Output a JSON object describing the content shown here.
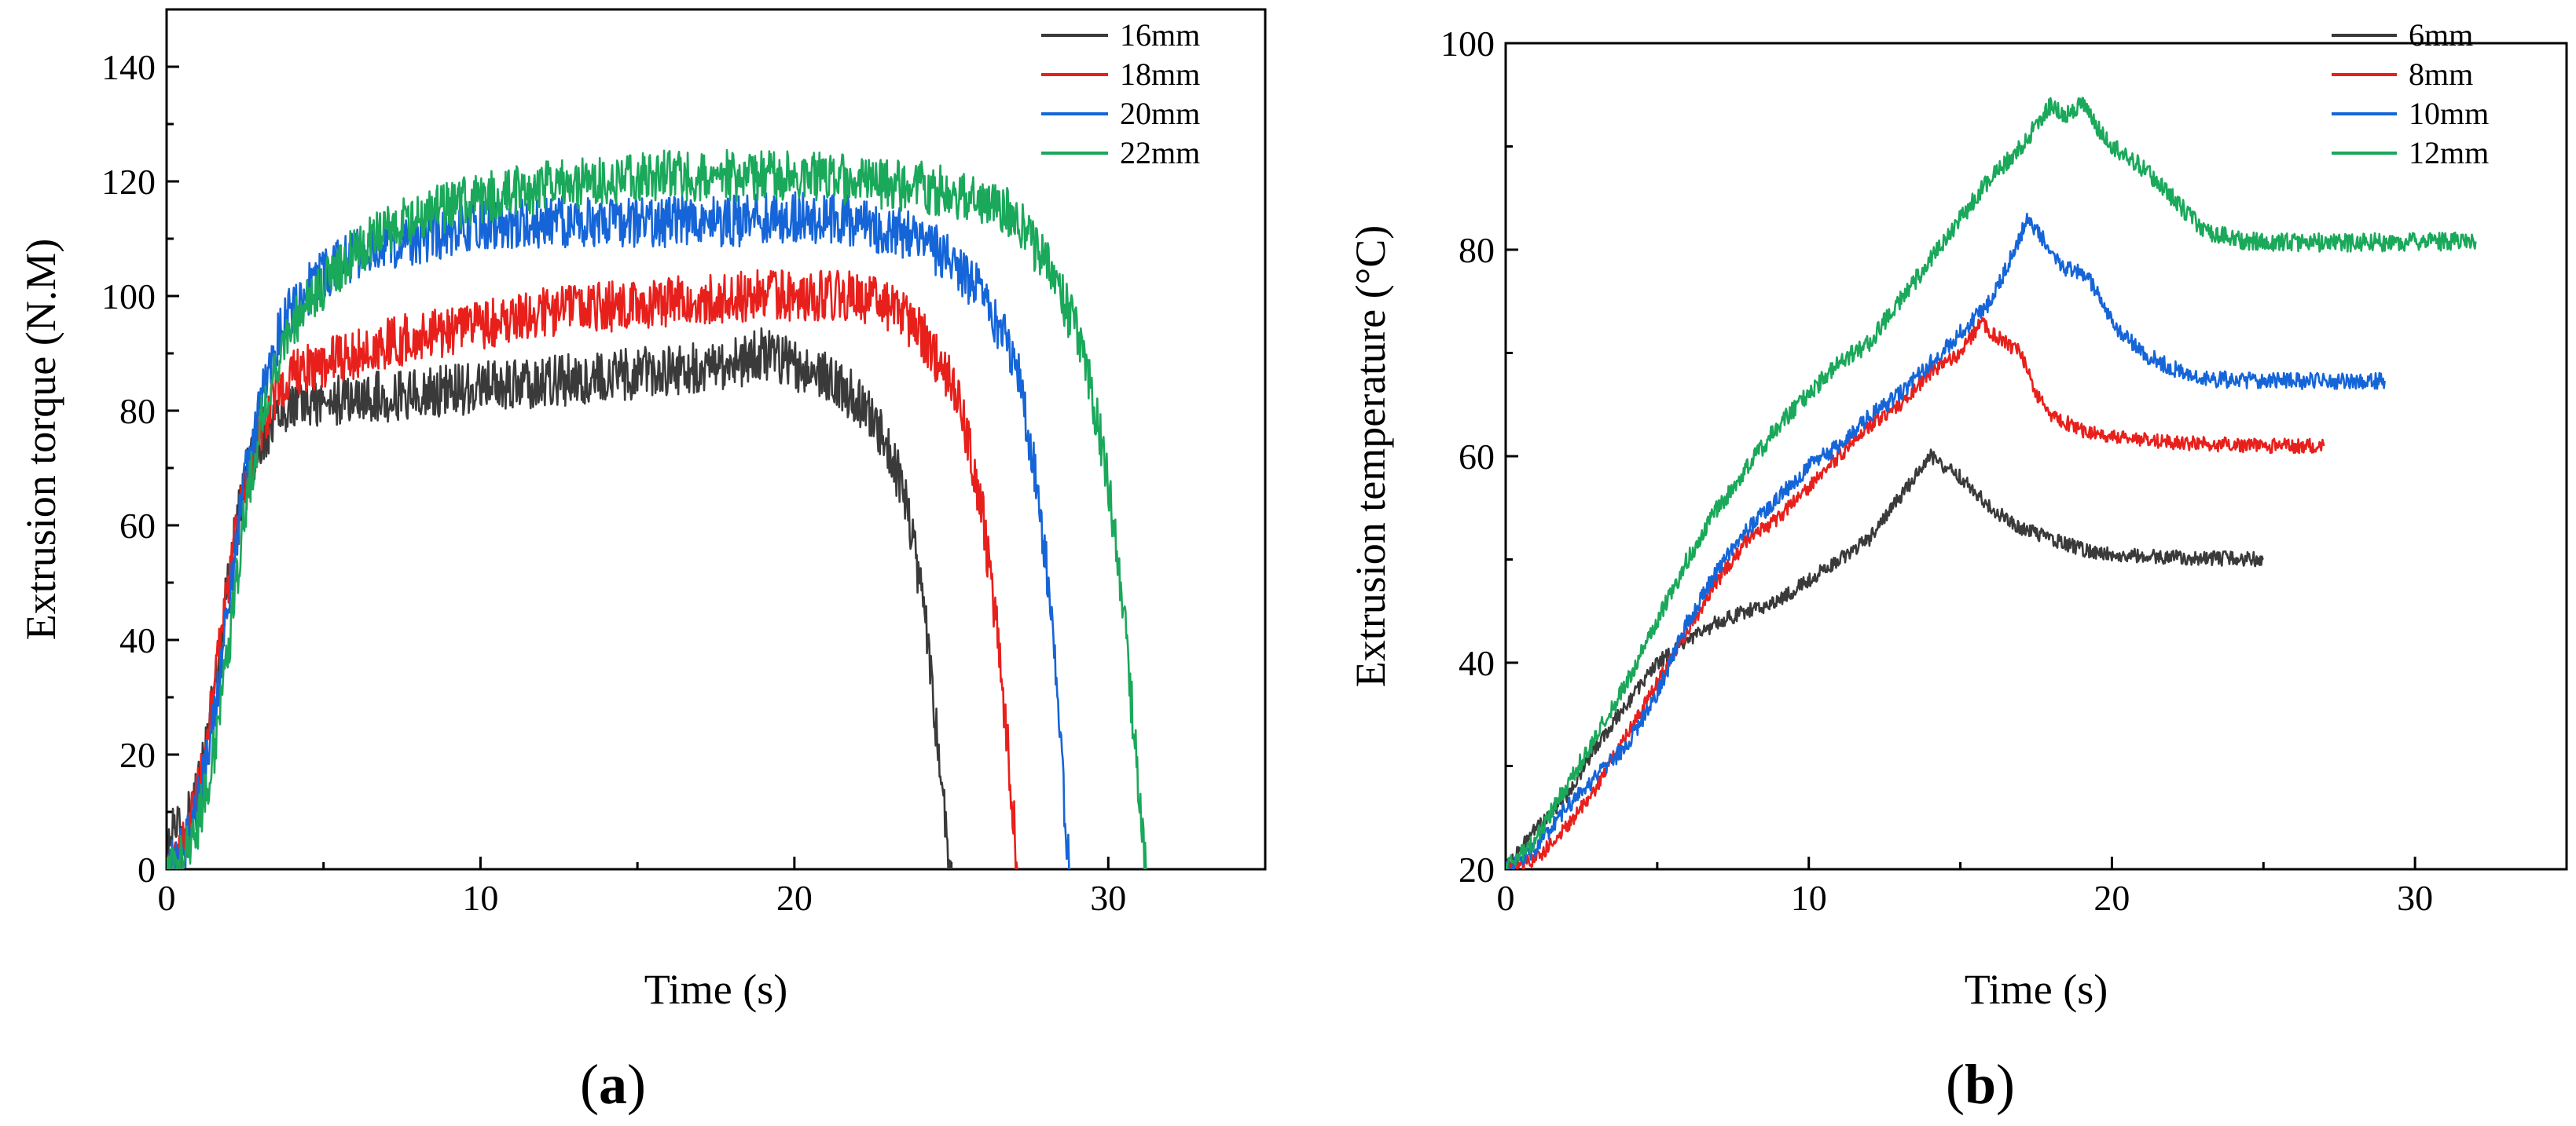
{
  "colors": {
    "black": "#3a3a3a",
    "red": "#e8201c",
    "blue": "#1565d8",
    "green": "#1aa85a"
  },
  "chart_data": [
    {
      "type": "line",
      "panel_label": "a",
      "xlabel": "Time (s)",
      "ylabel": "Extrusion torque (N.M)",
      "xlim": [
        0,
        35
      ],
      "ylim": [
        0,
        150
      ],
      "xticks": [
        0,
        10,
        20,
        30
      ],
      "yticks": [
        0,
        20,
        40,
        60,
        80,
        100,
        120,
        140
      ],
      "legend_position": "top-right",
      "series": [
        {
          "name": "16mm",
          "color": "black",
          "noise": 4.5,
          "points": [
            [
              0,
              0
            ],
            [
              0.2,
              8
            ],
            [
              0.5,
              6
            ],
            [
              1,
              14
            ],
            [
              1.5,
              30
            ],
            [
              2,
              52
            ],
            [
              2.5,
              68
            ],
            [
              3,
              75
            ],
            [
              3.5,
              79
            ],
            [
              4,
              81
            ],
            [
              6,
              82
            ],
            [
              8,
              83
            ],
            [
              10,
              84
            ],
            [
              12,
              85
            ],
            [
              14,
              86
            ],
            [
              16,
              87
            ],
            [
              18,
              88
            ],
            [
              19,
              90
            ],
            [
              20,
              88
            ],
            [
              21,
              86
            ],
            [
              22,
              82
            ],
            [
              23,
              74
            ],
            [
              23.5,
              65
            ],
            [
              24,
              50
            ],
            [
              24.3,
              38
            ],
            [
              24.6,
              20
            ],
            [
              24.8,
              8
            ],
            [
              25,
              0
            ]
          ]
        },
        {
          "name": "18mm",
          "color": "red",
          "noise": 4.5,
          "points": [
            [
              0,
              0
            ],
            [
              0.5,
              4
            ],
            [
              1,
              14
            ],
            [
              1.5,
              30
            ],
            [
              2,
              52
            ],
            [
              2.5,
              66
            ],
            [
              3,
              77
            ],
            [
              3.5,
              83
            ],
            [
              4,
              86
            ],
            [
              6,
              90
            ],
            [
              8,
              93
            ],
            [
              10,
              95
            ],
            [
              12,
              97
            ],
            [
              14,
              98
            ],
            [
              16,
              99
            ],
            [
              18,
              100
            ],
            [
              20,
              100
            ],
            [
              22,
              100
            ],
            [
              23,
              98
            ],
            [
              24,
              94
            ],
            [
              25,
              85
            ],
            [
              25.5,
              76
            ],
            [
              26,
              62
            ],
            [
              26.5,
              40
            ],
            [
              26.9,
              15
            ],
            [
              27.1,
              0
            ]
          ]
        },
        {
          "name": "20mm",
          "color": "blue",
          "noise": 4.5,
          "points": [
            [
              0,
              0
            ],
            [
              0.5,
              3
            ],
            [
              1,
              12
            ],
            [
              1.5,
              26
            ],
            [
              2,
              48
            ],
            [
              2.5,
              68
            ],
            [
              3,
              82
            ],
            [
              3.5,
              92
            ],
            [
              4,
              98
            ],
            [
              5,
              104
            ],
            [
              6,
              107
            ],
            [
              8,
              110
            ],
            [
              10,
              112
            ],
            [
              12,
              113
            ],
            [
              14,
              113
            ],
            [
              16,
              113
            ],
            [
              18,
              113
            ],
            [
              20,
              114
            ],
            [
              22,
              113
            ],
            [
              24,
              110
            ],
            [
              25,
              106
            ],
            [
              26,
              100
            ],
            [
              27,
              90
            ],
            [
              27.5,
              75
            ],
            [
              28,
              55
            ],
            [
              28.4,
              30
            ],
            [
              28.6,
              10
            ],
            [
              28.8,
              0
            ]
          ]
        },
        {
          "name": "22mm",
          "color": "green",
          "noise": 4.5,
          "points": [
            [
              0,
              0
            ],
            [
              0.5,
              2
            ],
            [
              1,
              8
            ],
            [
              1.5,
              20
            ],
            [
              2,
              40
            ],
            [
              2.5,
              62
            ],
            [
              3,
              78
            ],
            [
              3.5,
              88
            ],
            [
              4,
              95
            ],
            [
              5,
              102
            ],
            [
              6,
              108
            ],
            [
              8,
              114
            ],
            [
              10,
              117
            ],
            [
              12,
              119
            ],
            [
              14,
              120
            ],
            [
              16,
              121
            ],
            [
              18,
              121
            ],
            [
              20,
              121
            ],
            [
              22,
              120
            ],
            [
              24,
              119
            ],
            [
              26,
              117
            ],
            [
              27,
              114
            ],
            [
              28,
              106
            ],
            [
              29,
              94
            ],
            [
              29.5,
              82
            ],
            [
              30,
              68
            ],
            [
              30.5,
              45
            ],
            [
              30.8,
              25
            ],
            [
              31.1,
              5
            ],
            [
              31.2,
              0
            ]
          ]
        }
      ]
    },
    {
      "type": "line",
      "panel_label": "b",
      "xlabel": "Time (s)",
      "ylabel": "Extrusion temperature (°C)",
      "xlim": [
        0,
        35
      ],
      "ylim": [
        20,
        100
      ],
      "xticks": [
        0,
        10,
        20,
        30
      ],
      "yticks": [
        20,
        40,
        60,
        80,
        100
      ],
      "legend_position": "top-right",
      "series": [
        {
          "name": "6mm",
          "color": "black",
          "noise": 0.7,
          "points": [
            [
              0,
              20
            ],
            [
              1,
              24
            ],
            [
              2,
              27
            ],
            [
              3,
              32
            ],
            [
              4,
              36
            ],
            [
              5,
              40
            ],
            [
              6,
              42
            ],
            [
              7,
              44
            ],
            [
              8,
              45
            ],
            [
              9,
              46
            ],
            [
              10,
              48
            ],
            [
              11,
              50
            ],
            [
              12,
              52
            ],
            [
              13,
              56
            ],
            [
              14,
              60
            ],
            [
              14.5,
              59
            ],
            [
              15,
              58
            ],
            [
              16,
              55
            ],
            [
              17,
              53
            ],
            [
              18,
              52
            ],
            [
              19,
              51
            ],
            [
              20,
              50.5
            ],
            [
              22,
              50.2
            ],
            [
              25,
              50
            ]
          ]
        },
        {
          "name": "8mm",
          "color": "red",
          "noise": 0.7,
          "points": [
            [
              0,
              20
            ],
            [
              1,
              21
            ],
            [
              2,
              24
            ],
            [
              3,
              28
            ],
            [
              4,
              33
            ],
            [
              5,
              38
            ],
            [
              6,
              43
            ],
            [
              7,
              48
            ],
            [
              8,
              52
            ],
            [
              9,
              54
            ],
            [
              10,
              57
            ],
            [
              11,
              60
            ],
            [
              12,
              63
            ],
            [
              13,
              65
            ],
            [
              14,
              68
            ],
            [
              15,
              70
            ],
            [
              15.7,
              73
            ],
            [
              16,
              72
            ],
            [
              16.5,
              71
            ],
            [
              17,
              70
            ],
            [
              17.5,
              66
            ],
            [
              18,
              64
            ],
            [
              19,
              62.5
            ],
            [
              20,
              62
            ],
            [
              22,
              61.3
            ],
            [
              25,
              61
            ],
            [
              27,
              61
            ]
          ]
        },
        {
          "name": "10mm",
          "color": "blue",
          "noise": 0.8,
          "points": [
            [
              0,
              20
            ],
            [
              1,
              22
            ],
            [
              2,
              26
            ],
            [
              3,
              29
            ],
            [
              4,
              32
            ],
            [
              5,
              37
            ],
            [
              6,
              44
            ],
            [
              7,
              49
            ],
            [
              8,
              53
            ],
            [
              9,
              56
            ],
            [
              10,
              59
            ],
            [
              11,
              61
            ],
            [
              12,
              64
            ],
            [
              13,
              66
            ],
            [
              14,
              69
            ],
            [
              15,
              72
            ],
            [
              16,
              75
            ],
            [
              16.8,
              80
            ],
            [
              17.2,
              83
            ],
            [
              17.5,
              82
            ],
            [
              18,
              80
            ],
            [
              18.5,
              78
            ],
            [
              19,
              78
            ],
            [
              19.5,
              76
            ],
            [
              20,
              73
            ],
            [
              21,
              70
            ],
            [
              22,
              68.5
            ],
            [
              23,
              67.5
            ],
            [
              25,
              67.3
            ],
            [
              29,
              67.3
            ]
          ]
        },
        {
          "name": "12mm",
          "color": "green",
          "noise": 0.9,
          "points": [
            [
              0,
              20
            ],
            [
              1,
              23
            ],
            [
              2,
              28
            ],
            [
              3,
              33
            ],
            [
              4,
              38
            ],
            [
              5,
              44
            ],
            [
              6,
              50
            ],
            [
              7,
              55
            ],
            [
              8,
              59
            ],
            [
              9,
              63
            ],
            [
              10,
              66
            ],
            [
              11,
              69
            ],
            [
              12,
              71
            ],
            [
              13,
              75
            ],
            [
              14,
              79
            ],
            [
              15,
              83
            ],
            [
              16,
              87
            ],
            [
              17,
              90
            ],
            [
              18,
              94
            ],
            [
              18.5,
              93
            ],
            [
              19,
              94
            ],
            [
              19.5,
              92
            ],
            [
              20,
              90
            ],
            [
              21,
              88
            ],
            [
              22,
              85
            ],
            [
              23,
              82
            ],
            [
              24,
              81
            ],
            [
              25,
              80.7
            ],
            [
              28,
              80.7
            ],
            [
              32,
              80.8
            ]
          ]
        }
      ]
    }
  ]
}
